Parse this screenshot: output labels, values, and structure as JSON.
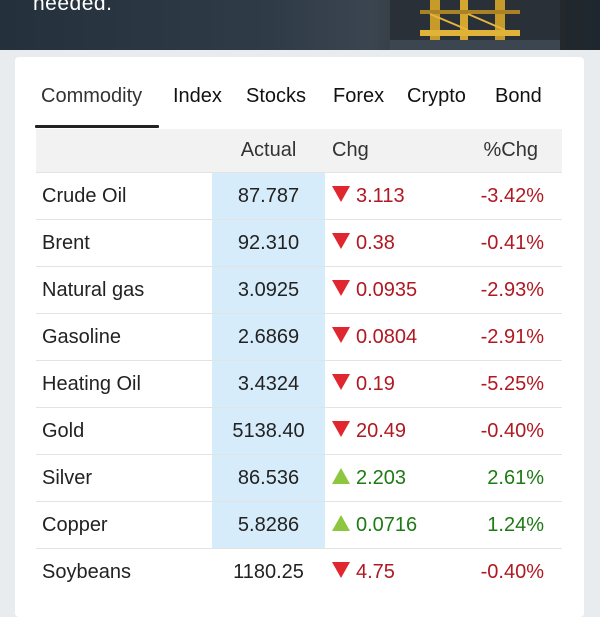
{
  "banner": {
    "text": "needed."
  },
  "tabs": [
    {
      "label": "Commodity",
      "active": true
    },
    {
      "label": "Index",
      "active": false
    },
    {
      "label": "Stocks",
      "active": false
    },
    {
      "label": "Forex",
      "active": false
    },
    {
      "label": "Crypto",
      "active": false
    },
    {
      "label": "Bond",
      "active": false
    }
  ],
  "table": {
    "headers": {
      "name": "",
      "actual": "Actual",
      "chg": "Chg",
      "pct": "%Chg"
    },
    "rows": [
      {
        "name": "Crude Oil",
        "actual": "87.787",
        "chg": "3.113",
        "pct": "-3.42%",
        "dir": "down"
      },
      {
        "name": "Brent",
        "actual": "92.310",
        "chg": "0.38",
        "pct": "-0.41%",
        "dir": "down"
      },
      {
        "name": "Natural gas",
        "actual": "3.0925",
        "chg": "0.0935",
        "pct": "-2.93%",
        "dir": "down"
      },
      {
        "name": "Gasoline",
        "actual": "2.6869",
        "chg": "0.0804",
        "pct": "-2.91%",
        "dir": "down"
      },
      {
        "name": "Heating Oil",
        "actual": "3.4324",
        "chg": "0.19",
        "pct": "-5.25%",
        "dir": "down"
      },
      {
        "name": "Gold",
        "actual": "5138.40",
        "chg": "20.49",
        "pct": "-0.40%",
        "dir": "down"
      },
      {
        "name": "Silver",
        "actual": "86.536",
        "chg": "2.203",
        "pct": "2.61%",
        "dir": "up"
      },
      {
        "name": "Copper",
        "actual": "5.8286",
        "chg": "0.0716",
        "pct": "1.24%",
        "dir": "up"
      },
      {
        "name": "Soybeans",
        "actual": "1180.25",
        "chg": "4.75",
        "pct": "-0.40%",
        "dir": "down"
      }
    ]
  },
  "colors": {
    "down": "#b01822",
    "up": "#1d7a14",
    "highlight": "#d7ecfa"
  }
}
